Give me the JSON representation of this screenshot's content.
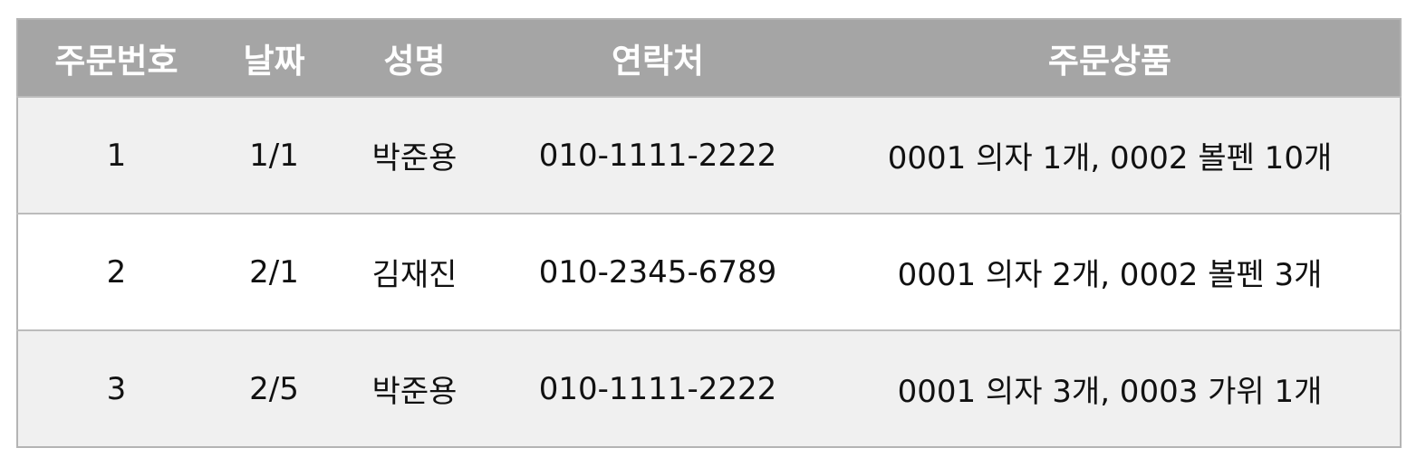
{
  "table": {
    "headers": [
      "주문번호",
      "날짜",
      "성명",
      "연락처",
      "주문상품"
    ],
    "rows": [
      [
        "1",
        "1/1",
        "박준용",
        "010-1111-2222",
        "0001 의자 1개, 0002 볼펜 10개"
      ],
      [
        "2",
        "2/1",
        "김재진",
        "010-2345-6789",
        "0001 의자 2개, 0002 볼펜 3개"
      ],
      [
        "3",
        "2/5",
        "박준용",
        "010-1111-2222",
        "0001 의자 3개, 0003 가위 1개"
      ]
    ]
  },
  "colors": {
    "header_bg": "#a5a5a5",
    "header_text": "#ffffff",
    "row_odd_bg": "#f0f0f0",
    "row_even_bg": "#ffffff",
    "border": "#b4b4b4"
  }
}
